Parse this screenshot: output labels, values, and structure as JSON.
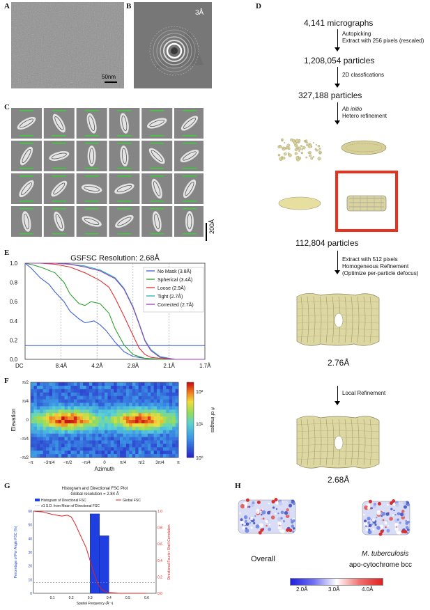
{
  "panel_letters": {
    "A": "A",
    "B": "B",
    "C": "C",
    "D": "D",
    "E": "E",
    "F": "F",
    "G": "G",
    "H": "H"
  },
  "panel_a": {
    "scalebar": "50nm"
  },
  "panel_b": {
    "resolution_label": "3Å"
  },
  "panel_c": {
    "scalebar": "200Å"
  },
  "panel_d": {
    "step1": "4,141 micrographs",
    "arrow1_line1": "Autopicking",
    "arrow1_line2": "Extract with 256 pixels (rescaled)",
    "step2": "1,208,054 particles",
    "arrow2_line1": "2D classfications",
    "step3": "327,188 particles",
    "arrow3_line1": "Ab initio",
    "arrow3_line2": "Hetero refinement",
    "step4": "112,804 particles",
    "arrow4_line1": "Extract with 512 pixels",
    "arrow4_line2": "Homogeneous Refinement",
    "arrow4_line3": "(Optimize per-particle defocus)",
    "res1": "2.76Å",
    "arrow5_line1": "Local Refinement",
    "res2": "2.68Å",
    "highlight_color": "#e8321e",
    "map_color": "#d9d3a0"
  },
  "panel_h": {
    "label_overall": "Overall",
    "label_species": "M. tuberculosis",
    "label_complex": "apo-cytochrome bcc",
    "colorbar_ticks": [
      "2.0Å",
      "3.0Å",
      "4.0Å"
    ]
  },
  "chart_data": [
    {
      "id": "E",
      "type": "line",
      "title": "GSFSC Resolution: 2.68Å",
      "xlabel": "",
      "ylabel": "",
      "x_tick_labels": [
        "DC",
        "8.4Å",
        "4.2Å",
        "2.8Å",
        "2.1Å",
        "1.7Å"
      ],
      "y_tick_labels": [
        "0.0",
        "0.2",
        "0.4",
        "0.6",
        "0.8",
        "1.0"
      ],
      "ylim": [
        0,
        1.0
      ],
      "xlim": [
        0,
        0.6
      ],
      "threshold": 0.143,
      "legend_position": "right",
      "series": [
        {
          "name": "No Mask (3.8Å)",
          "color": "#3a5fd9",
          "x": [
            0,
            0.02,
            0.05,
            0.08,
            0.1,
            0.13,
            0.15,
            0.18,
            0.2,
            0.23,
            0.25,
            0.27,
            0.3,
            0.33,
            0.36,
            0.4,
            0.45,
            0.5,
            0.6
          ],
          "y": [
            1.0,
            0.95,
            0.85,
            0.78,
            0.7,
            0.6,
            0.5,
            0.42,
            0.38,
            0.4,
            0.36,
            0.3,
            0.18,
            0.08,
            0.03,
            0.01,
            0.0,
            0.0,
            0.0
          ]
        },
        {
          "name": "Spherical (3.4Å)",
          "color": "#2ca02c",
          "x": [
            0,
            0.03,
            0.06,
            0.1,
            0.13,
            0.15,
            0.18,
            0.2,
            0.22,
            0.25,
            0.28,
            0.3,
            0.33,
            0.36,
            0.4,
            0.45,
            0.5,
            0.6
          ],
          "y": [
            1.0,
            0.98,
            0.95,
            0.9,
            0.8,
            0.68,
            0.58,
            0.56,
            0.6,
            0.58,
            0.48,
            0.32,
            0.15,
            0.05,
            0.01,
            0.0,
            0.0,
            0.0
          ]
        },
        {
          "name": "Loose (2.9Å)",
          "color": "#e03030",
          "x": [
            0,
            0.05,
            0.1,
            0.15,
            0.2,
            0.25,
            0.28,
            0.3,
            0.33,
            0.36,
            0.38,
            0.4,
            0.42,
            0.45,
            0.5,
            0.6
          ],
          "y": [
            1.0,
            1.0,
            0.99,
            0.96,
            0.9,
            0.82,
            0.75,
            0.64,
            0.45,
            0.25,
            0.12,
            0.05,
            0.02,
            0.01,
            0.0,
            0.0
          ]
        },
        {
          "name": "Tight (2.7Å)",
          "color": "#20b0b0",
          "x": [
            0,
            0.05,
            0.1,
            0.15,
            0.2,
            0.25,
            0.3,
            0.33,
            0.36,
            0.38,
            0.4,
            0.42,
            0.45,
            0.5,
            0.6
          ],
          "y": [
            1.0,
            1.0,
            1.0,
            0.99,
            0.97,
            0.93,
            0.85,
            0.74,
            0.55,
            0.38,
            0.2,
            0.1,
            0.03,
            0.0,
            0.0
          ]
        },
        {
          "name": "Corrected (2.7Å)",
          "color": "#9b3fc0",
          "x": [
            0,
            0.05,
            0.1,
            0.15,
            0.2,
            0.25,
            0.3,
            0.33,
            0.36,
            0.38,
            0.4,
            0.42,
            0.45,
            0.5,
            0.6
          ],
          "y": [
            1.0,
            1.0,
            1.0,
            0.99,
            0.96,
            0.92,
            0.84,
            0.73,
            0.54,
            0.37,
            0.19,
            0.09,
            0.02,
            0.0,
            0.0
          ]
        }
      ]
    },
    {
      "id": "F",
      "type": "heatmap",
      "xlabel": "Azimuth",
      "ylabel": "Elevation",
      "x_tick_labels": [
        "−π",
        "−3π/4",
        "−π/2",
        "−π/4",
        "0",
        "π/4",
        "π/2",
        "3π/4",
        "π"
      ],
      "y_tick_labels": [
        "−π/2",
        "−π/4",
        "0",
        "π/4",
        "π/2"
      ],
      "colorbar_label": "# of images",
      "colorbar_ticks": [
        "10⁰",
        "10¹",
        "10²"
      ],
      "scale": "log"
    },
    {
      "id": "G",
      "type": "bar",
      "title": "Histogram and Directional FSC Plot",
      "subtitle": "Global resolution = 2.84 Å",
      "xlabel": "Spatial Frequency (Å⁻¹)",
      "ylabel": "Percentage of Per Angle FSC (%)",
      "y2label": "Directional Fourier Shell Correlation",
      "legend": [
        "Histogram of Directional FSC",
        "±1 S.D. from Mean of Directional FSC",
        "Global FSC"
      ],
      "x_tick_labels": [
        "0.1",
        "0.2",
        "0.3",
        "0.4",
        "0.5",
        "0.6"
      ],
      "y_tick_labels": [
        "0",
        "10",
        "20",
        "30",
        "40",
        "50",
        "60"
      ],
      "y2_tick_labels": [
        "0.0",
        "0.2",
        "0.4",
        "0.6",
        "0.8",
        "1.0"
      ],
      "bins": [
        {
          "x0": 0.3,
          "x1": 0.35,
          "value": 58
        },
        {
          "x0": 0.35,
          "x1": 0.4,
          "value": 42
        }
      ],
      "global_fsc": {
        "x": [
          0.0,
          0.05,
          0.1,
          0.15,
          0.18,
          0.2,
          0.22,
          0.25,
          0.28,
          0.3,
          0.32,
          0.34,
          0.36,
          0.38,
          0.4,
          0.45,
          0.5,
          0.6
        ],
        "y": [
          1.0,
          0.99,
          0.96,
          0.94,
          0.95,
          0.93,
          0.85,
          0.7,
          0.55,
          0.4,
          0.25,
          0.12,
          0.05,
          0.02,
          0.01,
          0.0,
          0.0,
          0.0
        ]
      }
    }
  ]
}
